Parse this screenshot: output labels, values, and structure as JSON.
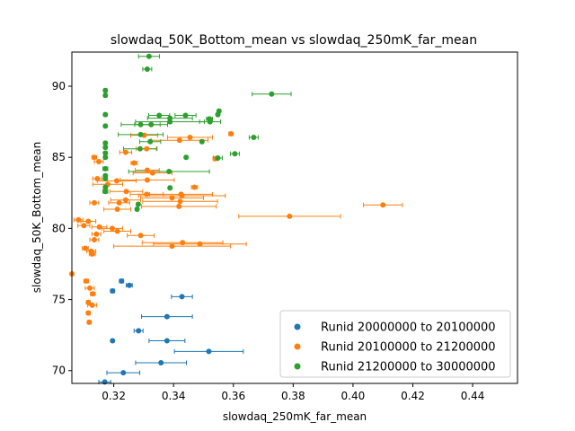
{
  "chart_data": {
    "type": "scatter",
    "title": "slowdaq_50K_Bottom_mean vs slowdaq_250mK_far_mean",
    "xlabel": "slowdaq_250mK_far_mean",
    "ylabel": "slowdaq_50K_Bottom_mean",
    "xlim": [
      0.306,
      0.455
    ],
    "ylim": [
      69.1,
      92.4
    ],
    "xticks": [
      0.32,
      0.34,
      0.36,
      0.38,
      0.4,
      0.42,
      0.44
    ],
    "xtick_labels": [
      "0.32",
      "0.34",
      "0.36",
      "0.38",
      "0.40",
      "0.42",
      "0.44"
    ],
    "yticks": [
      70,
      75,
      80,
      85,
      90
    ],
    "ytick_labels": [
      "70",
      "75",
      "80",
      "85",
      "90"
    ],
    "grid": false,
    "legend_position": "lower-right",
    "error_bars": "horizontal",
    "series": [
      {
        "name": "Runid 20000000 to 20100000",
        "color": "#1f77b4",
        "points": [
          [
            0.3226,
            76.3,
            0.0007
          ],
          [
            0.3252,
            76.0,
            0.001
          ],
          [
            0.3196,
            75.6,
            0.0007
          ],
          [
            0.3428,
            75.2,
            0.0035
          ],
          [
            0.3378,
            73.8,
            0.0085
          ],
          [
            0.3283,
            72.8,
            0.0015
          ],
          [
            0.3196,
            72.1,
            0.0005
          ],
          [
            0.3378,
            72.1,
            0.006
          ],
          [
            0.3518,
            71.35,
            0.0115
          ],
          [
            0.3358,
            70.55,
            0.0085
          ],
          [
            0.3232,
            69.85,
            0.0055
          ],
          [
            0.317,
            69.2,
            0.002
          ]
        ]
      },
      {
        "name": "Runid 20100000 to 21200000",
        "color": "#ff7f0e",
        "points": [
          [
            0.3592,
            86.65,
            0.0007
          ],
          [
            0.3302,
            86.55,
            0.0045
          ],
          [
            0.3455,
            86.4,
            0.0075
          ],
          [
            0.342,
            86.2,
            0.0095
          ],
          [
            0.331,
            85.6,
            0.0035
          ],
          [
            0.324,
            85.35,
            0.002
          ],
          [
            0.3135,
            85.0,
            0.0008
          ],
          [
            0.354,
            84.9,
            0.0008
          ],
          [
            0.315,
            84.7,
            0.0015
          ],
          [
            0.3268,
            84.6,
            0.001
          ],
          [
            0.3312,
            84.1,
            0.004
          ],
          [
            0.333,
            83.9,
            0.0065
          ],
          [
            0.3145,
            83.5,
            0.0015
          ],
          [
            0.3312,
            83.4,
            0.009
          ],
          [
            0.321,
            83.35,
            0.0065
          ],
          [
            0.318,
            83.1,
            0.005
          ],
          [
            0.347,
            82.9,
            0.001
          ],
          [
            0.3242,
            82.6,
            0.0055
          ],
          [
            0.331,
            82.4,
            0.0055
          ],
          [
            0.3425,
            82.4,
            0.0105
          ],
          [
            0.3395,
            82.15,
            0.0105
          ],
          [
            0.3428,
            82.3,
            0.0145
          ],
          [
            0.324,
            82.0,
            0.005
          ],
          [
            0.3135,
            81.8,
            0.0015
          ],
          [
            0.3218,
            81.8,
            0.0035
          ],
          [
            0.3422,
            81.9,
            0.0125
          ],
          [
            0.3418,
            81.55,
            0.0125
          ],
          [
            0.3212,
            81.35,
            0.0045
          ],
          [
            0.41,
            81.65,
            0.0065
          ],
          [
            0.3788,
            80.85,
            0.017
          ],
          [
            0.3082,
            80.6,
            0.0015
          ],
          [
            0.3115,
            80.5,
            0.0025
          ],
          [
            0.31,
            80.2,
            0.002
          ],
          [
            0.3152,
            80.1,
            0.0025
          ],
          [
            0.3195,
            80.0,
            0.0035
          ],
          [
            0.3212,
            79.8,
            0.0045
          ],
          [
            0.3142,
            79.6,
            0.0015
          ],
          [
            0.329,
            79.5,
            0.0045
          ],
          [
            0.3135,
            79.2,
            0.0015
          ],
          [
            0.343,
            79.0,
            0.0135
          ],
          [
            0.3395,
            78.75,
            0.0195
          ],
          [
            0.3105,
            78.6,
            0.001
          ],
          [
            0.3488,
            78.9,
            0.0155
          ],
          [
            0.3125,
            78.4,
            0.0015
          ],
          [
            0.3128,
            78.2,
            0.001
          ],
          [
            0.306,
            76.8,
            0.0006
          ],
          [
            0.3108,
            76.3,
            0.0008
          ],
          [
            0.312,
            75.8,
            0.0015
          ],
          [
            0.313,
            75.4,
            0.0008
          ],
          [
            0.3115,
            74.8,
            0.0006
          ],
          [
            0.3128,
            74.6,
            0.0015
          ],
          [
            0.3115,
            74.05,
            0.0006
          ],
          [
            0.3118,
            73.4,
            0.0006
          ]
        ]
      },
      {
        "name": "Runid 21200000 to 30000000",
        "color": "#2ca02c",
        "points": [
          [
            0.3318,
            92.1,
            0.0035
          ],
          [
            0.3312,
            91.2,
            0.0015
          ],
          [
            0.3172,
            89.7,
            0.0005
          ],
          [
            0.3172,
            89.35,
            0.0005
          ],
          [
            0.3728,
            89.45,
            0.0065
          ],
          [
            0.3172,
            88.0,
            0.0005
          ],
          [
            0.3552,
            88.25,
            0.0005
          ],
          [
            0.3548,
            88.0,
            0.0005
          ],
          [
            0.3352,
            87.95,
            0.0035
          ],
          [
            0.3388,
            87.75,
            0.0075
          ],
          [
            0.344,
            87.95,
            0.0035
          ],
          [
            0.352,
            87.7,
            0.001
          ],
          [
            0.3522,
            87.5,
            0.0035
          ],
          [
            0.329,
            87.3,
            0.0065
          ],
          [
            0.3325,
            87.3,
            0.0055
          ],
          [
            0.3388,
            87.5,
            0.0115
          ],
          [
            0.3172,
            87.2,
            0.0005
          ],
          [
            0.329,
            86.6,
            0.0075
          ],
          [
            0.3322,
            86.1,
            0.0035
          ],
          [
            0.3495,
            86.1,
            0.0005
          ],
          [
            0.3668,
            86.4,
            0.0015
          ],
          [
            0.3172,
            86.0,
            0.0005
          ],
          [
            0.3172,
            85.7,
            0.0005
          ],
          [
            0.3288,
            85.6,
            0.0055
          ],
          [
            0.3172,
            85.3,
            0.0005
          ],
          [
            0.3605,
            85.25,
            0.0015
          ],
          [
            0.3172,
            85.0,
            0.0005
          ],
          [
            0.3442,
            85.0,
            0.0005
          ],
          [
            0.3548,
            84.95,
            0.0015
          ],
          [
            0.3172,
            84.2,
            0.0008
          ],
          [
            0.3385,
            84.0,
            0.0135
          ],
          [
            0.3172,
            83.7,
            0.0005
          ],
          [
            0.3172,
            83.5,
            0.0005
          ],
          [
            0.3172,
            82.9,
            0.0005
          ],
          [
            0.3388,
            82.85,
            0.0005
          ],
          [
            0.3172,
            82.6,
            0.0008
          ],
          [
            0.3282,
            81.7,
            0.0005
          ],
          [
            0.3278,
            81.35,
            0.0005
          ]
        ]
      }
    ]
  }
}
